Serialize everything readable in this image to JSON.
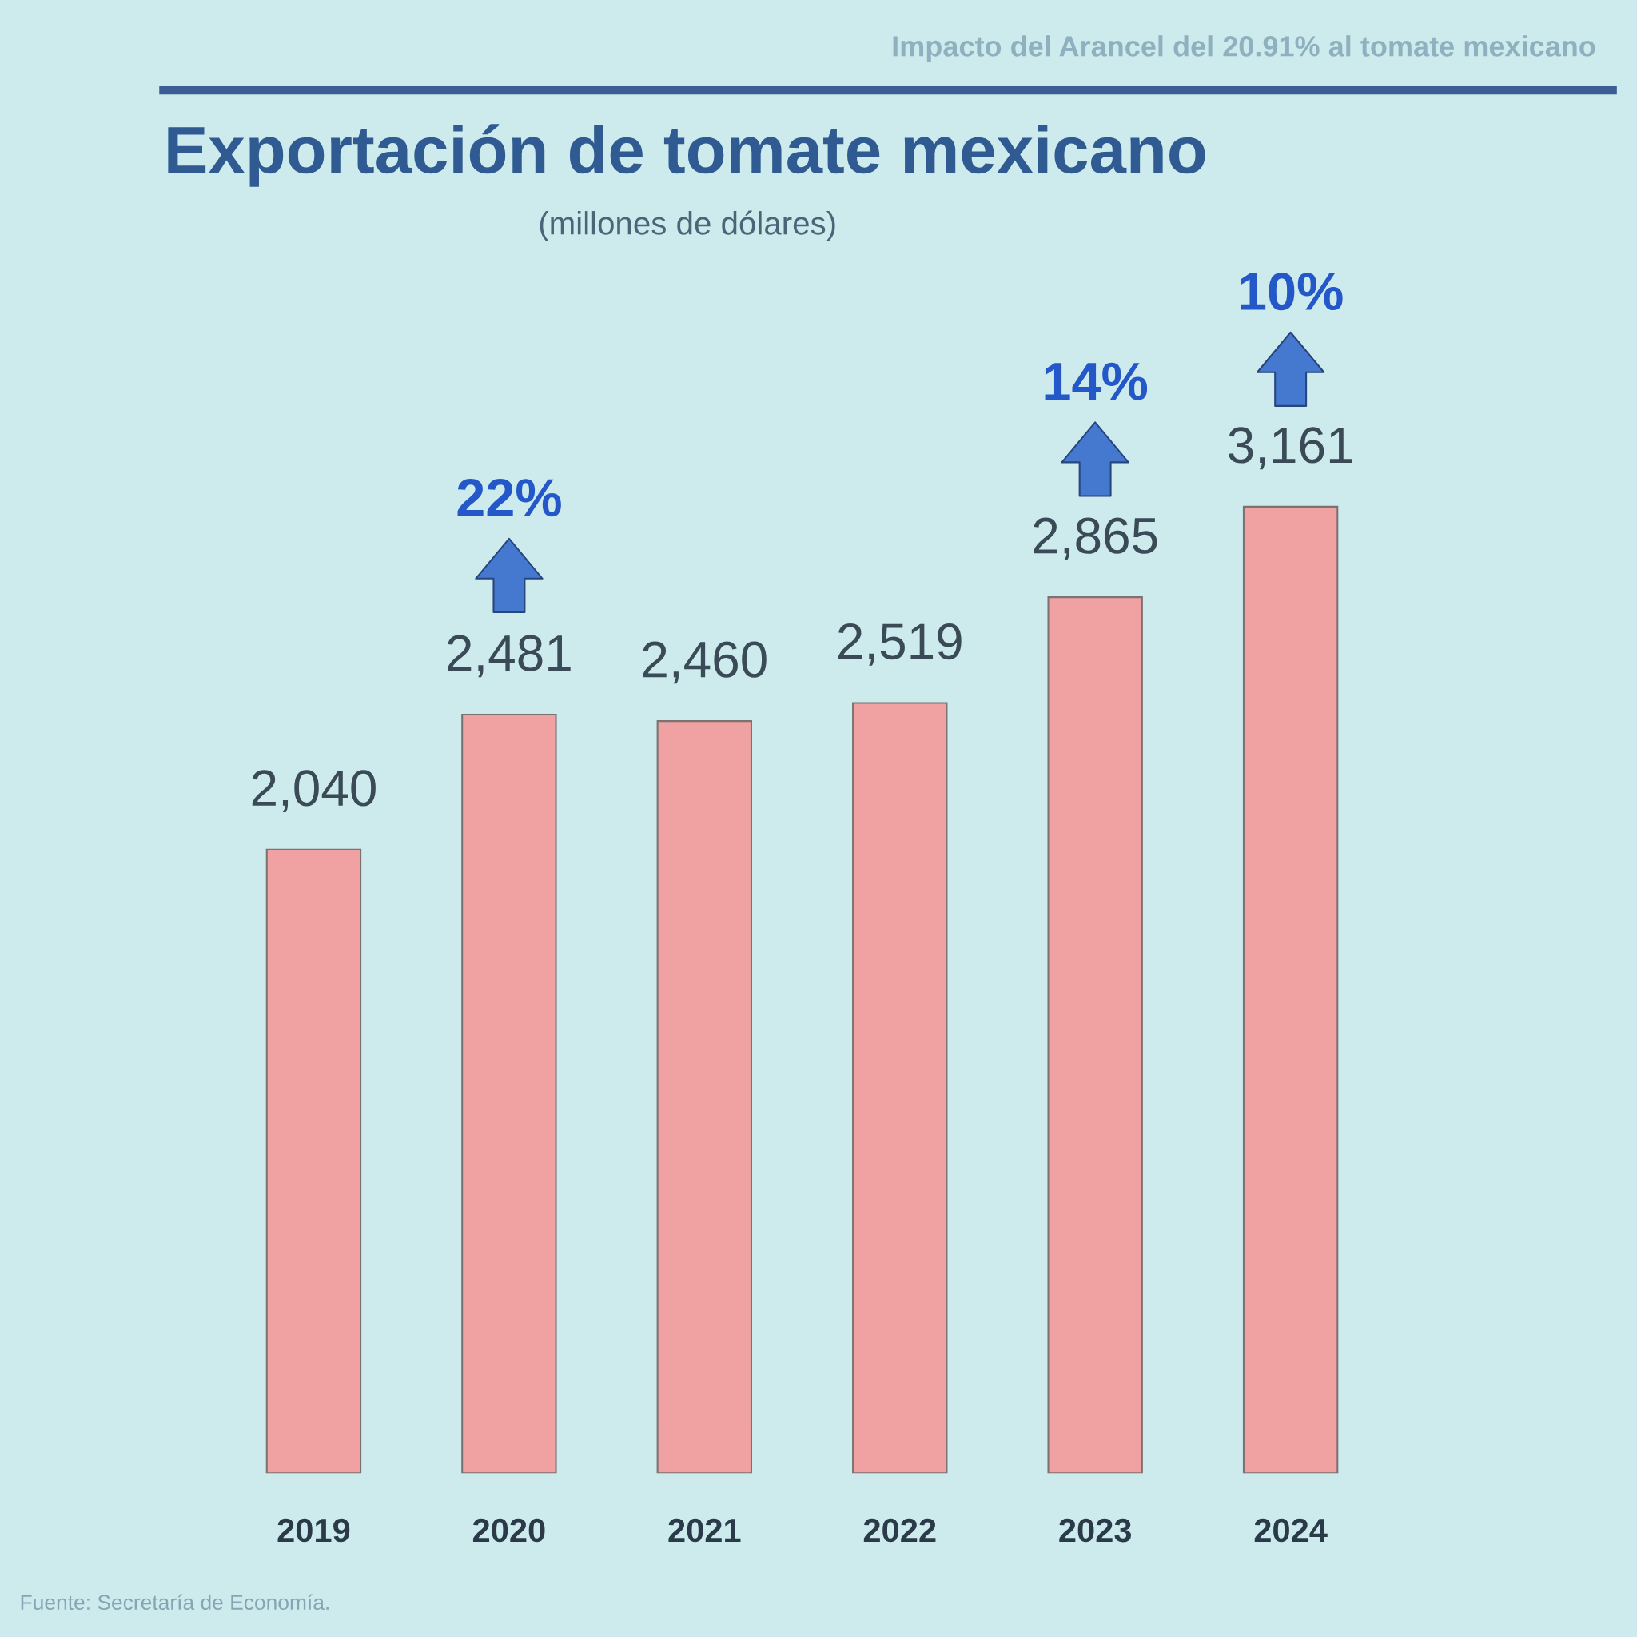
{
  "chart_data": {
    "type": "bar",
    "title": "Exportación de tomate mexicano",
    "subtitle": "(millones de dólares)",
    "categories": [
      "2019",
      "2020",
      "2021",
      "2022",
      "2023",
      "2024"
    ],
    "values": [
      2040,
      2481,
      2460,
      2519,
      2865,
      3161
    ],
    "value_labels": [
      "2,040",
      "2,481",
      "2,460",
      "2,519",
      "2,865",
      "3,161"
    ],
    "color": "#f0a2a2",
    "tick_labels": "x",
    "annotations": [
      "22%",
      "14%",
      "10%",
      "Impacto del Arancel del 20.91% al tomate mexicano",
      "Fuente: Secretaría de Economía."
    ]
  }
}
